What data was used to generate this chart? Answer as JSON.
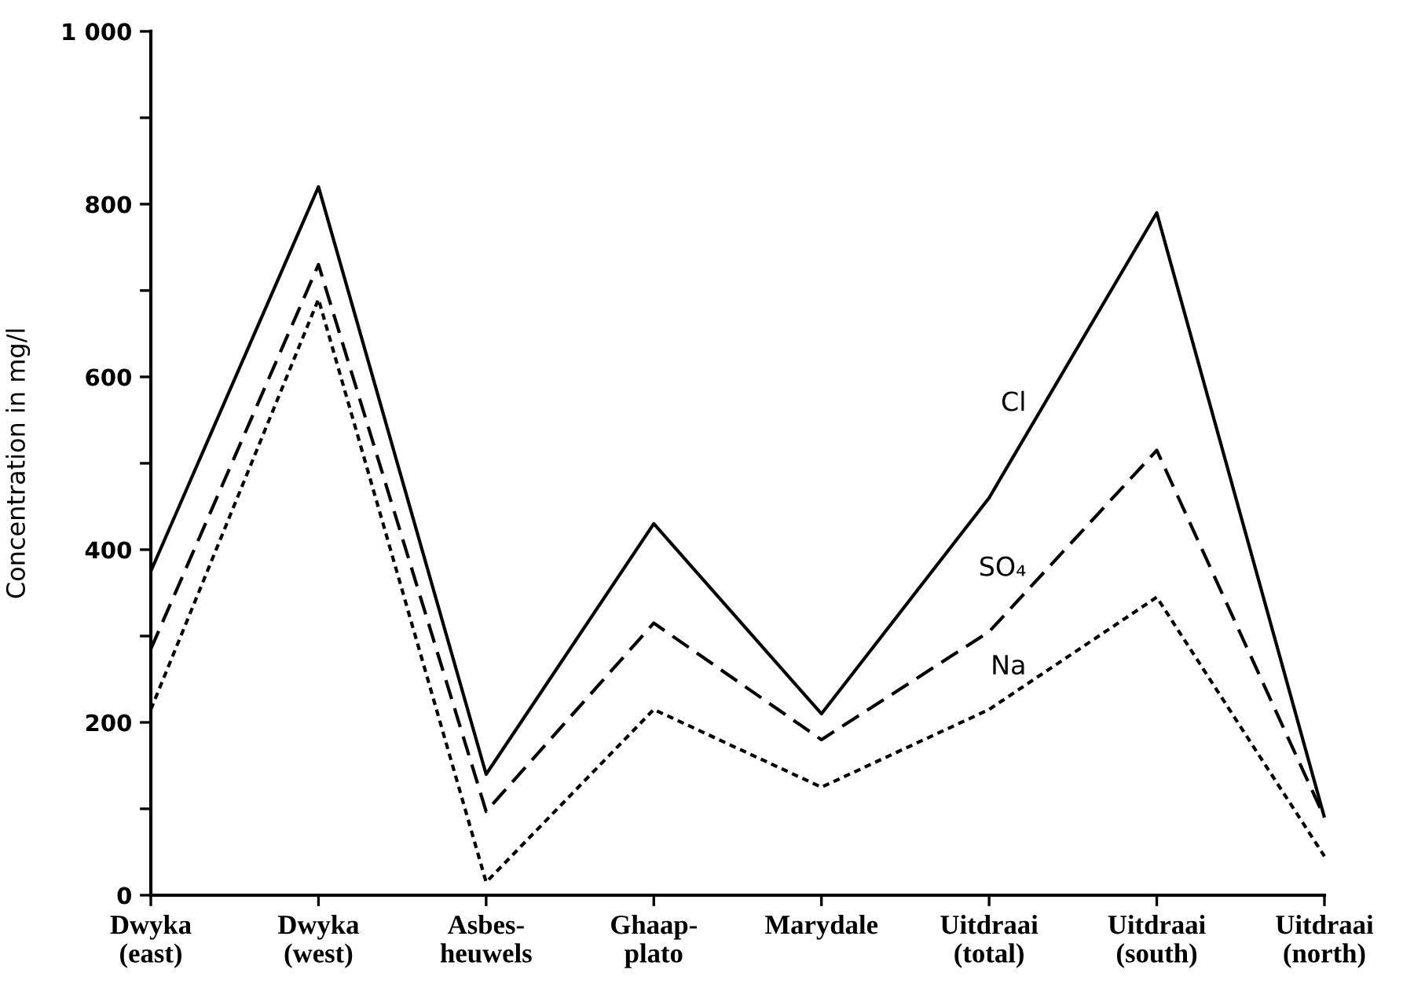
{
  "chart_data": {
    "type": "line",
    "ylabel": "Concentration in mg/l",
    "categories": [
      "Dwyka\n(east)",
      "Dwyka\n(west)",
      "Asbes-\nheuwels",
      "Ghaap-\nplato",
      "Marydale",
      "Uitdraai\n(total)",
      "Uitdraai\n(south)",
      "Uitdraai\n(north)"
    ],
    "series": [
      {
        "name": "Cl",
        "color": "#000000",
        "line_style": "solid",
        "values": [
          375,
          820,
          140,
          430,
          210,
          460,
          790,
          90
        ]
      },
      {
        "name": "SO₄",
        "color": "#000000",
        "line_style": "dashed",
        "values": [
          285,
          730,
          97,
          315,
          180,
          305,
          515,
          90
        ]
      },
      {
        "name": "Na",
        "color": "#000000",
        "line_style": "dotted",
        "values": [
          215,
          690,
          15,
          215,
          125,
          215,
          345,
          45
        ]
      }
    ],
    "ylim": [
      0,
      1000
    ],
    "yticks": [
      0,
      {
        "value": 100,
        "label": null
      },
      200,
      {
        "value": 300,
        "label": null
      },
      400,
      {
        "value": 500,
        "label": null
      },
      600,
      {
        "value": 700,
        "label": null
      },
      800,
      {
        "value": 900,
        "label": null
      },
      {
        "value": 1000,
        "label": "1 000"
      }
    ]
  }
}
